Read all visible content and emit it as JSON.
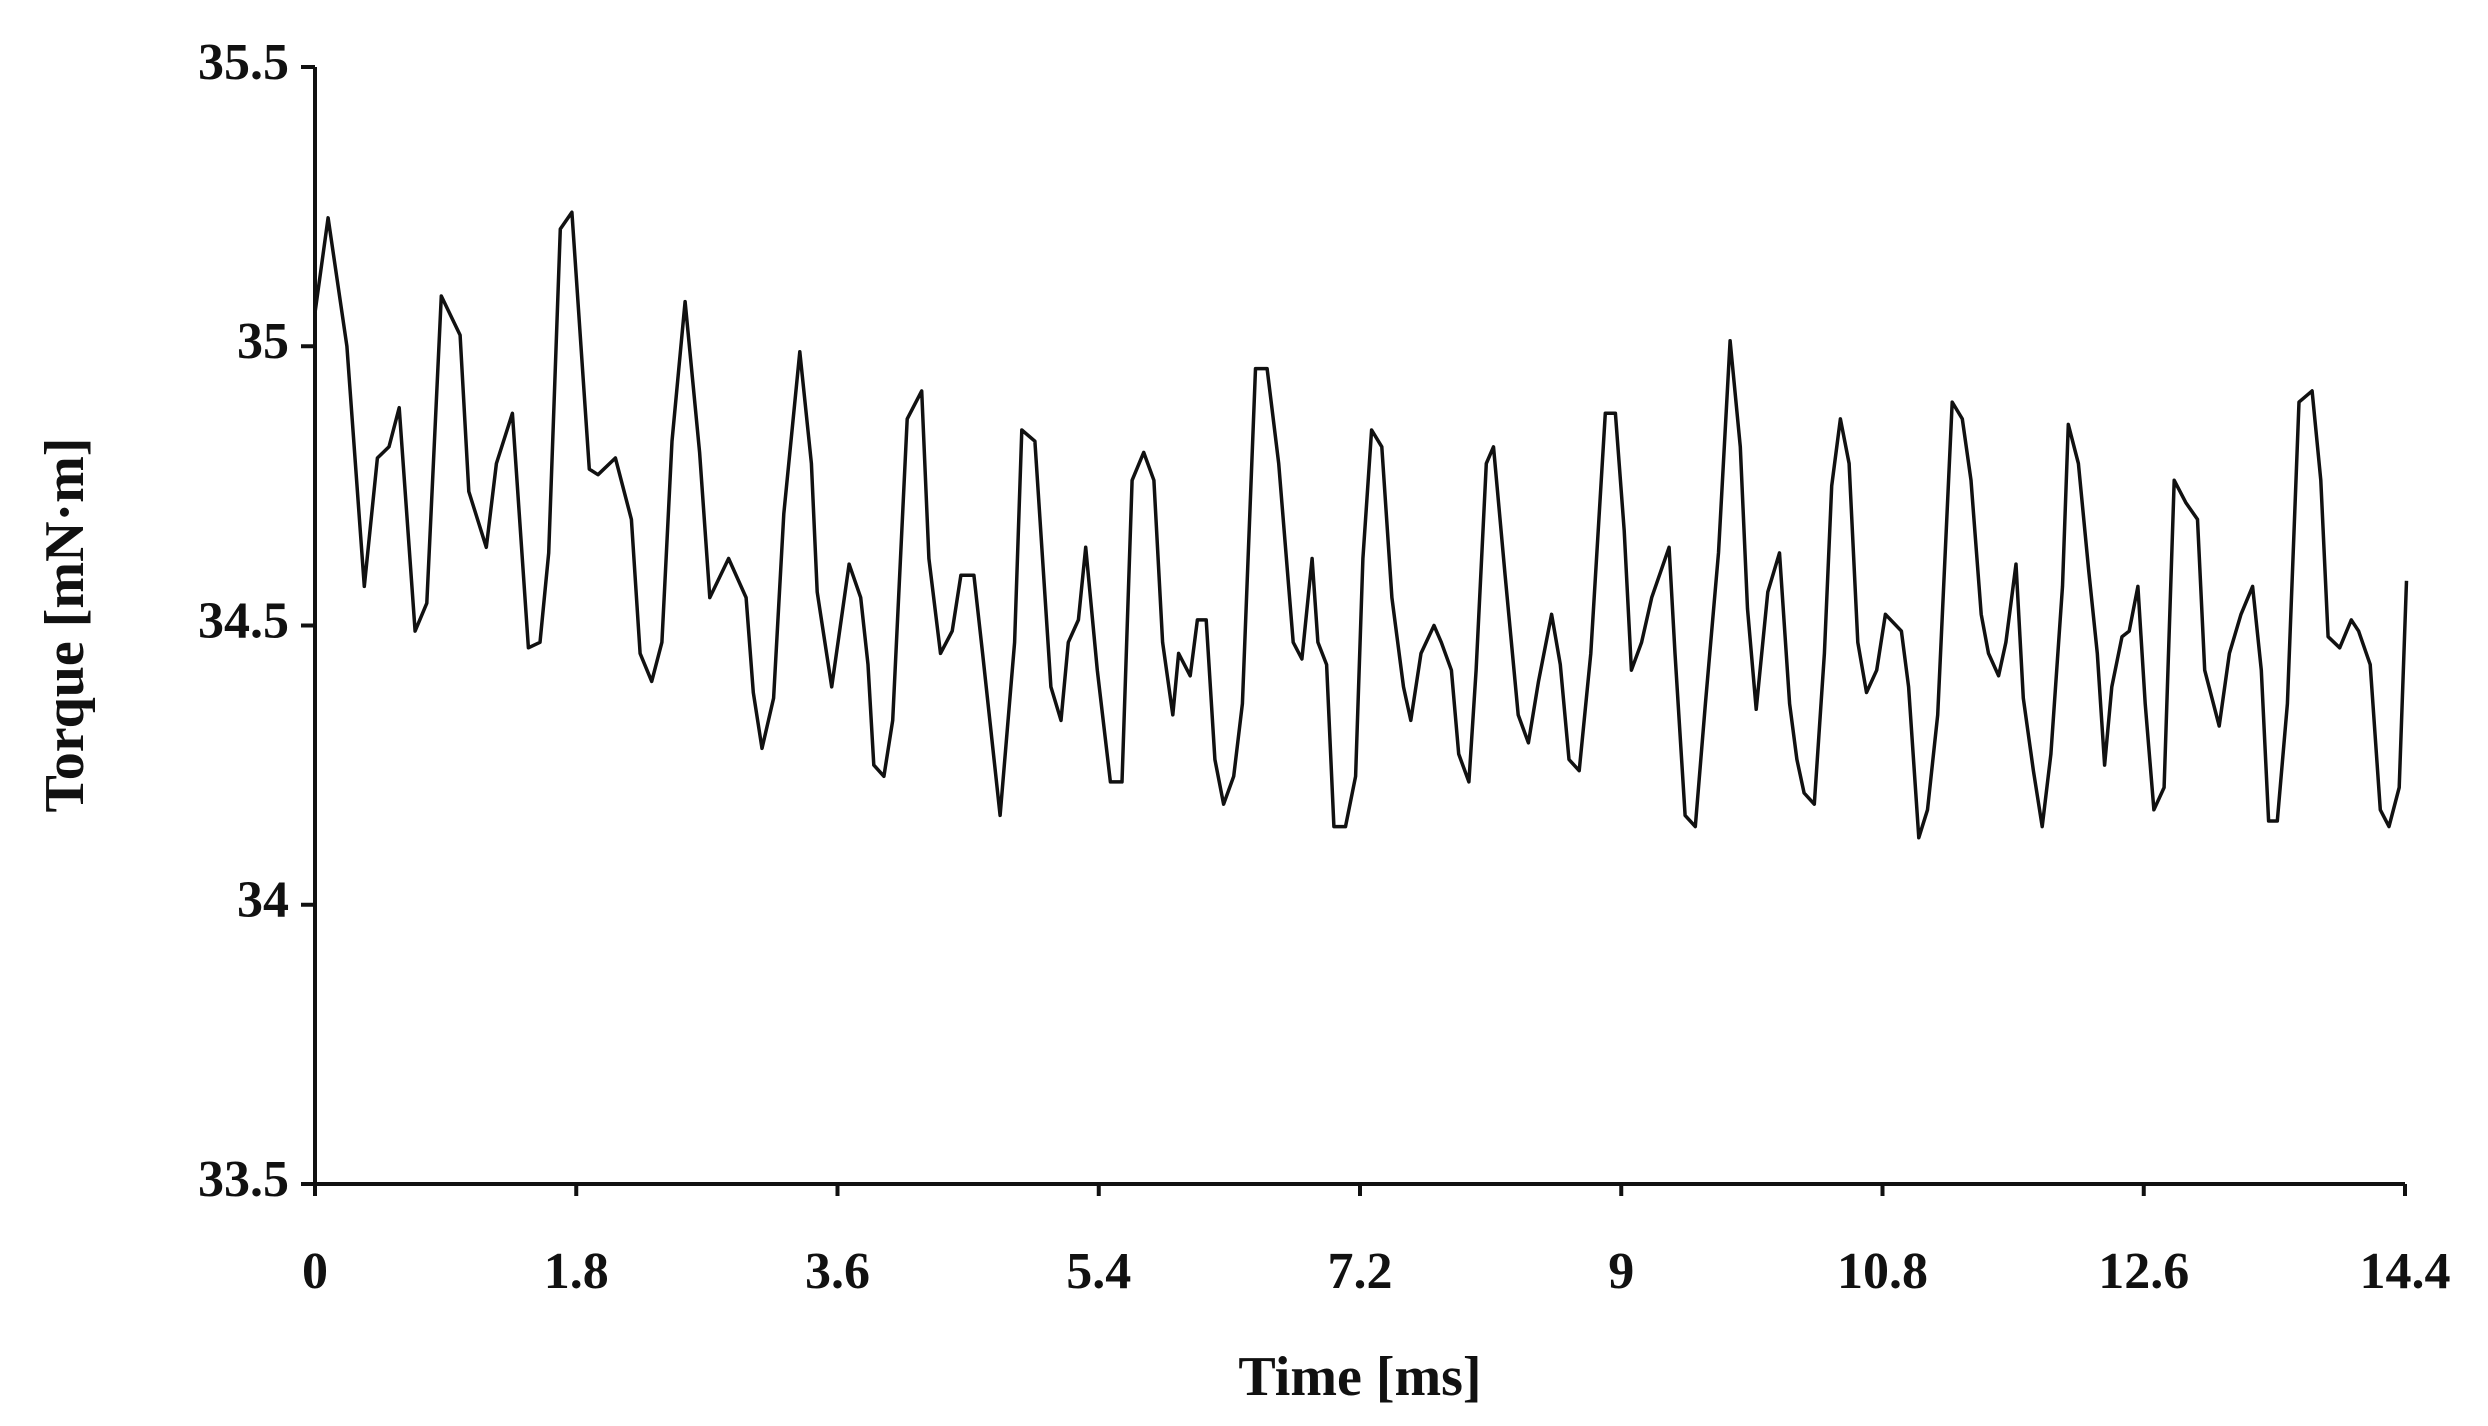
{
  "chart_data": {
    "type": "line",
    "xlabel": "Time [ms]",
    "ylabel": "Torque [mN·m]",
    "color": "#111111",
    "xlim": [
      0,
      14.4
    ],
    "ylim": [
      33.5,
      35.5
    ],
    "xticks": [
      0,
      1.8,
      3.6,
      5.4,
      7.2,
      9,
      10.8,
      12.6,
      14.4
    ],
    "yticks": [
      33.5,
      34,
      34.5,
      35,
      35.5
    ],
    "grid": false,
    "x": [
      0,
      0.09,
      0.22,
      0.34,
      0.43,
      0.51,
      0.58,
      0.69,
      0.77,
      0.87,
      1.0,
      1.06,
      1.18,
      1.25,
      1.36,
      1.47,
      1.55,
      1.61,
      1.69,
      1.77,
      1.89,
      1.95,
      2.07,
      2.18,
      2.24,
      2.32,
      2.39,
      2.46,
      2.55,
      2.65,
      2.72,
      2.85,
      2.97,
      3.02,
      3.08,
      3.16,
      3.23,
      3.34,
      3.42,
      3.46,
      3.56,
      3.68,
      3.76,
      3.81,
      3.85,
      3.92,
      3.98,
      4.08,
      4.18,
      4.23,
      4.31,
      4.39,
      4.45,
      4.54,
      4.6,
      4.72,
      4.82,
      4.87,
      4.96,
      5.07,
      5.14,
      5.19,
      5.26,
      5.31,
      5.39,
      5.48,
      5.56,
      5.63,
      5.71,
      5.78,
      5.84,
      5.91,
      5.95,
      6.03,
      6.08,
      6.14,
      6.2,
      6.26,
      6.33,
      6.39,
      6.48,
      6.56,
      6.64,
      6.74,
      6.8,
      6.87,
      6.91,
      6.97,
      7.02,
      7.1,
      7.17,
      7.22,
      7.28,
      7.35,
      7.42,
      7.5,
      7.55,
      7.62,
      7.71,
      7.76,
      7.83,
      7.88,
      7.95,
      8.0,
      8.07,
      8.12,
      8.2,
      8.29,
      8.36,
      8.43,
      8.52,
      8.58,
      8.64,
      8.71,
      8.79,
      8.89,
      8.96,
      9.02,
      9.07,
      9.14,
      9.21,
      9.33,
      9.37,
      9.44,
      9.51,
      9.58,
      9.67,
      9.75,
      9.82,
      9.87,
      9.93,
      10.01,
      10.09,
      10.16,
      10.21,
      10.26,
      10.33,
      10.4,
      10.45,
      10.51,
      10.57,
      10.63,
      10.69,
      10.76,
      10.82,
      10.93,
      10.98,
      11.05,
      11.11,
      11.18,
      11.28,
      11.35,
      11.41,
      11.48,
      11.53,
      11.6,
      11.65,
      11.72,
      11.77,
      11.84,
      11.9,
      11.96,
      12.04,
      12.08,
      12.15,
      12.22,
      12.28,
      12.33,
      12.38,
      12.45,
      12.5,
      12.56,
      12.61,
      12.67,
      12.74,
      12.81,
      12.89,
      12.97,
      13.02,
      13.12,
      13.19,
      13.27,
      13.35,
      13.41,
      13.46,
      13.52,
      13.59,
      13.67,
      13.76,
      13.82,
      13.87,
      13.95,
      14.03,
      14.08,
      14.16,
      14.23,
      14.29,
      14.36,
      14.41
    ],
    "values": [
      35.06,
      35.23,
      35.0,
      34.57,
      34.8,
      34.82,
      34.89,
      34.49,
      34.54,
      35.09,
      35.02,
      34.74,
      34.64,
      34.79,
      34.88,
      34.46,
      34.47,
      34.63,
      35.21,
      35.24,
      34.78,
      34.77,
      34.8,
      34.69,
      34.45,
      34.4,
      34.47,
      34.83,
      35.08,
      34.81,
      34.55,
      34.62,
      34.55,
      34.38,
      34.28,
      34.37,
      34.7,
      34.99,
      34.79,
      34.56,
      34.39,
      34.61,
      34.55,
      34.43,
      34.25,
      34.23,
      34.33,
      34.87,
      34.92,
      34.62,
      34.45,
      34.49,
      34.59,
      34.59,
      34.45,
      34.16,
      34.47,
      34.85,
      34.83,
      34.39,
      34.33,
      34.47,
      34.51,
      34.64,
      34.42,
      34.22,
      34.22,
      34.76,
      34.81,
      34.76,
      34.47,
      34.34,
      34.45,
      34.41,
      34.51,
      34.51,
      34.26,
      34.18,
      34.23,
      34.36,
      34.96,
      34.96,
      34.79,
      34.47,
      34.44,
      34.62,
      34.47,
      34.43,
      34.14,
      34.14,
      34.23,
      34.62,
      34.85,
      34.82,
      34.55,
      34.39,
      34.33,
      34.45,
      34.5,
      34.47,
      34.42,
      34.27,
      34.22,
      34.42,
      34.79,
      34.82,
      34.59,
      34.34,
      34.29,
      34.4,
      34.52,
      34.43,
      34.26,
      34.24,
      34.45,
      34.88,
      34.88,
      34.67,
      34.42,
      34.47,
      34.55,
      34.64,
      34.45,
      34.16,
      34.14,
      34.36,
      34.63,
      35.01,
      34.82,
      34.53,
      34.35,
      34.56,
      34.63,
      34.36,
      34.26,
      34.2,
      34.18,
      34.45,
      34.75,
      34.87,
      34.79,
      34.47,
      34.38,
      34.42,
      34.52,
      34.49,
      34.39,
      34.12,
      34.17,
      34.34,
      34.9,
      34.87,
      34.76,
      34.52,
      34.45,
      34.41,
      34.47,
      34.61,
      34.37,
      34.24,
      34.14,
      34.27,
      34.57,
      34.86,
      34.79,
      34.6,
      34.45,
      34.25,
      34.39,
      34.48,
      34.49,
      34.57,
      34.36,
      34.17,
      34.21,
      34.76,
      34.72,
      34.69,
      34.42,
      34.32,
      34.45,
      34.52,
      34.57,
      34.42,
      34.15,
      34.15,
      34.36,
      34.9,
      34.92,
      34.76,
      34.48,
      34.46,
      34.51,
      34.49,
      34.43,
      34.17,
      34.14,
      34.21,
      34.58
    ]
  }
}
